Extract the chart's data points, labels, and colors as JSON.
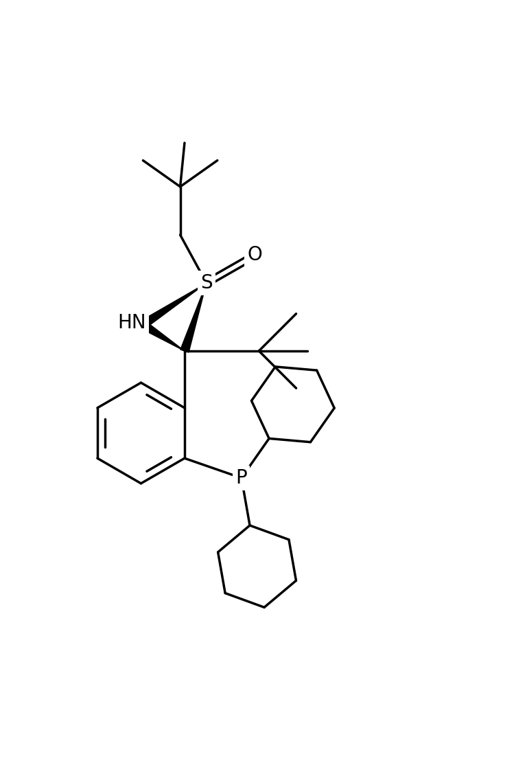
{
  "background": "#ffffff",
  "line_color": "#000000",
  "lw": 2.5,
  "font_size": 20,
  "figsize": [
    7.68,
    11.08
  ],
  "dpi": 100,
  "xlim": [
    -4.5,
    7.5
  ],
  "ylim": [
    -8.0,
    8.0
  ]
}
